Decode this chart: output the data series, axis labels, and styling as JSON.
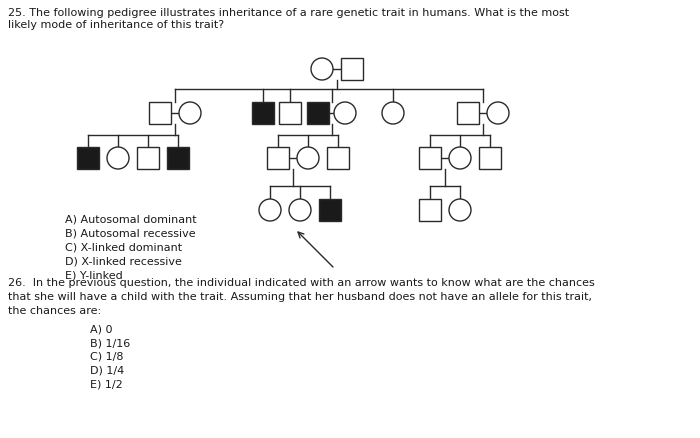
{
  "bg_color": "#ffffff",
  "text_color": "#1a1a1a",
  "line_color": "#2a2a2a",
  "filled_color": "#1a1a1a",
  "empty_color": "#ffffff",
  "q25_title": "25. The following pedigree illustrates inheritance of a rare genetic trait in humans. What is the most\nlikely mode of inheritance of this trait?",
  "q25_answers": [
    "A) Autosomal dominant",
    "B) Autosomal recessive",
    "C) X-linked dominant",
    "D) X-linked recessive",
    "E) Y-linked"
  ],
  "q26_title_line1": "26.  In the previous question, the individual indicated with an arrow wants to know what are the chances",
  "q26_title_line2": "that she will have a child with the trait. Assuming that her husband does not have an allele for this trait,",
  "q26_title_line3": "the chances are:",
  "q26_answers": [
    "A) 0",
    "B) 1/16",
    "C) 1/8",
    "D) 1/4",
    "E) 1/2"
  ],
  "fontsize_main": 8.0,
  "fontsize_ans": 8.0
}
